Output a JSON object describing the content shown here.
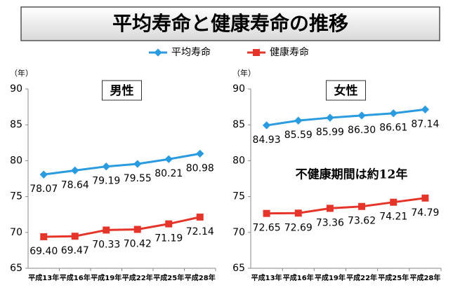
{
  "title": "平均寿命と健康寿命の推移",
  "chart_data": [
    {
      "type": "line",
      "title": "男性",
      "ylabel": "（年）",
      "categories": [
        "平成13年",
        "平成16年",
        "平成19年",
        "平成22年",
        "平成25年",
        "平成28年"
      ],
      "ylim": [
        65,
        90
      ],
      "yticks": [
        65,
        70,
        75,
        80,
        85,
        90
      ],
      "grid": false,
      "series": [
        {
          "name": "平均寿命",
          "color": "#2b9be0",
          "marker": "diamond",
          "values": [
            78.07,
            78.64,
            79.19,
            79.55,
            80.21,
            80.98
          ],
          "value_labels": [
            "78.07",
            "78.64",
            "79.19",
            "79.55",
            "80.21",
            "80.98"
          ]
        },
        {
          "name": "健康寿命",
          "color": "#e5352a",
          "marker": "square",
          "values": [
            69.4,
            69.47,
            70.33,
            70.42,
            71.19,
            72.14
          ],
          "value_labels": [
            "69.40",
            "69.47",
            "70.33",
            "70.42",
            "71.19",
            "72.14"
          ]
        }
      ]
    },
    {
      "type": "line",
      "title": "女性",
      "ylabel": "（年）",
      "annotation": "不健康期間は約12年",
      "categories": [
        "平成13年",
        "平成16年",
        "平成19年",
        "平成22年",
        "平成25年",
        "平成28年"
      ],
      "ylim": [
        65,
        90
      ],
      "yticks": [
        65,
        70,
        75,
        80,
        85,
        90
      ],
      "grid": false,
      "series": [
        {
          "color": "#2b9be0",
          "marker": "diamond",
          "values": [
            84.93,
            85.59,
            85.99,
            86.3,
            86.61,
            87.14
          ],
          "value_labels": [
            "84.93",
            "85.59",
            "85.99",
            "86.30",
            "86.61",
            "87.14"
          ]
        },
        {
          "color": "#e5352a",
          "marker": "square",
          "values": [
            72.65,
            72.69,
            73.36,
            73.62,
            74.21,
            74.79
          ],
          "value_labels": [
            "72.65",
            "72.69",
            "73.36",
            "73.62",
            "74.21",
            "74.79"
          ]
        }
      ]
    }
  ]
}
